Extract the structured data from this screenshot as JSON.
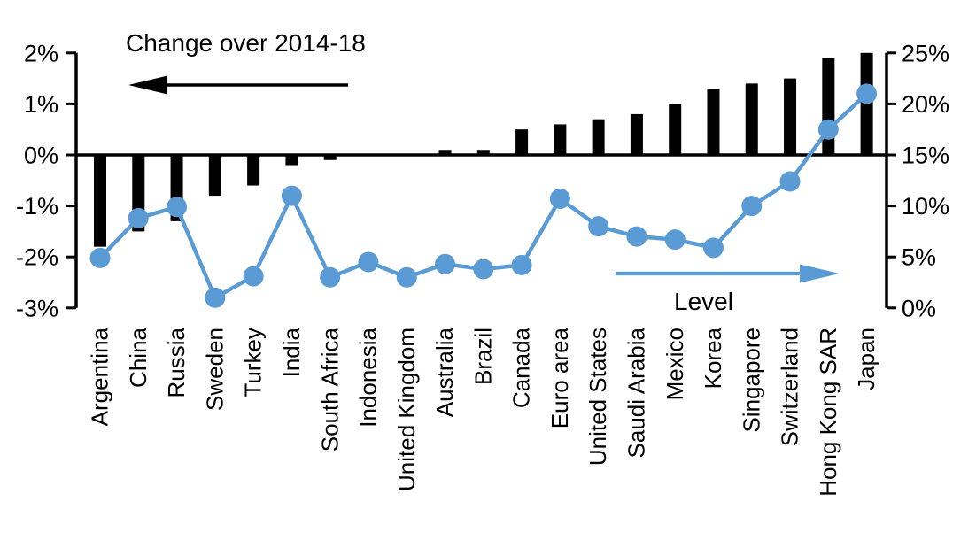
{
  "chart_data": {
    "type": "bar",
    "subtype": "dual-axis-bar-with-line-overlay",
    "title": "",
    "categories": [
      "Argentina",
      "China",
      "Russia",
      "Sweden",
      "Turkey",
      "India",
      "South Africa",
      "Indonesia",
      "United Kingdom",
      "Australia",
      "Brazil",
      "Canada",
      "Euro area",
      "United States",
      "Saudi Arabia",
      "Mexico",
      "Korea",
      "Singapore",
      "Switzerland",
      "Hong Kong SAR",
      "Japan"
    ],
    "series": [
      {
        "name": "Change over 2014-18",
        "type": "bar",
        "axis": "left",
        "color": "#000000",
        "values": [
          -1.8,
          -1.5,
          -1.3,
          -0.8,
          -0.6,
          -0.2,
          -0.1,
          0,
          0,
          0.1,
          0.1,
          0.5,
          0.6,
          0.7,
          0.8,
          1.0,
          1.3,
          1.4,
          1.5,
          1.9,
          2.0
        ]
      },
      {
        "name": "Level",
        "type": "line",
        "axis": "right",
        "color": "#5B9BD5",
        "values": [
          4.9,
          8.8,
          9.9,
          1.0,
          3.1,
          11.0,
          3.0,
          4.5,
          3.0,
          4.3,
          3.8,
          4.2,
          10.7,
          8.0,
          7.0,
          6.7,
          5.9,
          10.0,
          12.4,
          17.5,
          21.0
        ]
      }
    ],
    "left_axis": {
      "min": -3,
      "max": 2,
      "tick_values": [
        2,
        1,
        0,
        -1,
        -2,
        -3
      ],
      "tick_labels": [
        "2%",
        "1%",
        "0%",
        "-1%",
        "-2%",
        "-3%"
      ]
    },
    "right_axis": {
      "min": 0,
      "max": 25,
      "tick_values": [
        25,
        20,
        15,
        10,
        5,
        0
      ],
      "tick_labels": [
        "25%",
        "20%",
        "15%",
        "10%",
        "5%",
        "0%"
      ]
    },
    "annotations": {
      "bar_series_label": "Change over 2014-18",
      "line_series_label": "Level",
      "bar_arrow_direction": "left",
      "line_arrow_direction": "right"
    },
    "grid": false,
    "legend_position": "in-plot-annotations",
    "background": "#ffffff",
    "axis_color": "#000000"
  }
}
